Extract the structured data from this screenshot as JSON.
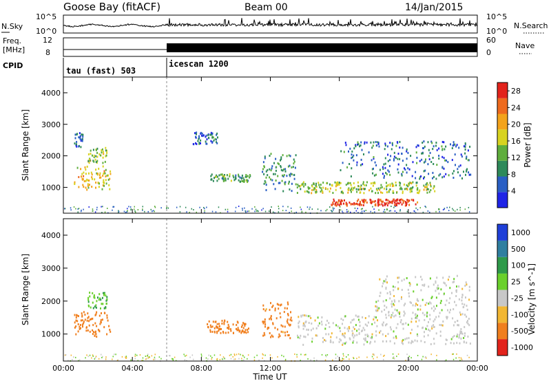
{
  "header": {
    "station": "Goose Bay (fitACF)",
    "beam": "Beam 00",
    "date": "14/Jan/2015"
  },
  "strips": {
    "nsky_label": "N.Sky",
    "nsky_ticks": [
      "10^5",
      "10^0"
    ],
    "nsearch_label": "N.Search",
    "nsearch_ticks": [
      "10^5",
      "10^0"
    ],
    "freq_label_1": "Freq.",
    "freq_label_2": "[MHz]",
    "freq_ticks": [
      "12",
      "8"
    ],
    "nave_label": "Nave",
    "nave_ticks": [
      "60",
      "0"
    ],
    "cpid_label": "CPID",
    "cpid_segments": [
      {
        "label": "tau (fast) 503",
        "start_hour": 0
      },
      {
        "label": "icescan 1200",
        "start_hour": 6
      }
    ]
  },
  "chart_data": [
    {
      "type": "heatmap",
      "title": "",
      "xlabel": "Time UT",
      "ylabel": "Slant Range [km]",
      "xlim": [
        0,
        24
      ],
      "ylim": [
        180,
        4500
      ],
      "x_ticks": [
        "00:00",
        "04:00",
        "08:00",
        "12:00",
        "16:00",
        "20:00",
        "00:00"
      ],
      "y_ticks": [
        1000,
        2000,
        3000,
        4000
      ],
      "colorbar": {
        "label": "Power [dB]",
        "ticks": [
          4,
          8,
          12,
          16,
          20,
          24,
          28
        ],
        "range": [
          0,
          30
        ],
        "colors": [
          "#1f24e6",
          "#2a5fc4",
          "#2e8a5a",
          "#5fae3c",
          "#d8d320",
          "#f3a31b",
          "#ee6a1e",
          "#e2231c"
        ]
      },
      "regions": [
        {
          "t0": 0.6,
          "t1": 2.7,
          "r0": 950,
          "r1": 1700,
          "value": 18
        },
        {
          "t0": 0.6,
          "t1": 1.1,
          "r0": 2300,
          "r1": 2800,
          "value": 6
        },
        {
          "t0": 1.4,
          "t1": 2.5,
          "r0": 1800,
          "r1": 2300,
          "value": 14
        },
        {
          "t0": 8.5,
          "t1": 10.8,
          "r0": 1200,
          "r1": 1450,
          "value": 11
        },
        {
          "t0": 7.5,
          "t1": 9.0,
          "r0": 2400,
          "r1": 2800,
          "value": 7
        },
        {
          "t0": 11.5,
          "t1": 13.5,
          "r0": 900,
          "r1": 2100,
          "value": 10
        },
        {
          "t0": 13.5,
          "t1": 21.5,
          "r0": 850,
          "r1": 1200,
          "value": 15
        },
        {
          "t0": 15.5,
          "t1": 20.5,
          "r0": 450,
          "r1": 650,
          "value": 27
        },
        {
          "t0": 16.0,
          "t1": 23.6,
          "r0": 1300,
          "r1": 2500,
          "value": 7
        }
      ]
    },
    {
      "type": "heatmap",
      "title": "",
      "xlabel": "Time UT",
      "ylabel": "Slant Range [km]",
      "xlim": [
        0,
        24
      ],
      "ylim": [
        180,
        4500
      ],
      "x_ticks": [
        "00:00",
        "04:00",
        "08:00",
        "12:00",
        "16:00",
        "20:00",
        "00:00"
      ],
      "y_ticks": [
        1000,
        2000,
        3000,
        4000
      ],
      "colorbar": {
        "label": "Velocity [m s^-1]",
        "ticks": [
          "1000",
          "500",
          "100",
          "25",
          "-25",
          "-100",
          "-500",
          "-1000"
        ],
        "colors": [
          "#1f3fd8",
          "#2f7fa0",
          "#2e9a4a",
          "#6ad02c",
          "#c8c8c8",
          "#f2b733",
          "#f07f1e",
          "#e2231c"
        ]
      },
      "regions": [
        {
          "t0": 0.6,
          "t1": 2.7,
          "r0": 950,
          "r1": 1700,
          "value": -150
        },
        {
          "t0": 1.4,
          "t1": 2.5,
          "r0": 1800,
          "r1": 2300,
          "value": 50
        },
        {
          "t0": 8.3,
          "t1": 10.8,
          "r0": 1050,
          "r1": 1450,
          "value": -200
        },
        {
          "t0": 11.5,
          "t1": 13.2,
          "r0": 900,
          "r1": 2000,
          "value": -100
        },
        {
          "t0": 13.5,
          "t1": 23.6,
          "r0": 700,
          "r1": 1600,
          "value": 0
        },
        {
          "t0": 18.0,
          "t1": 23.6,
          "r0": 1600,
          "r1": 2800,
          "value": 0
        }
      ]
    }
  ]
}
